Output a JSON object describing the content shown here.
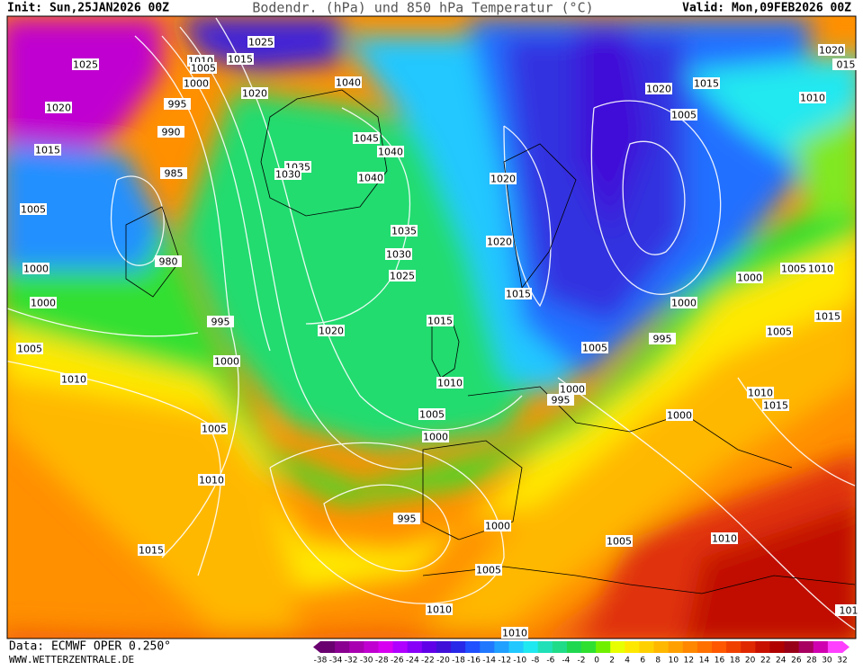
{
  "header": {
    "init": "Init: Sun,25JAN2026 00Z",
    "title": "Bodendr. (hPa) und 850 hPa Temperatur (°C)",
    "valid": "Valid: Mon,09FEB2026 00Z"
  },
  "isobar_labels": [
    "1025",
    "1010",
    "1005",
    "1015",
    "1025",
    "1000",
    "1020",
    "1040",
    "1020",
    "995",
    "990",
    "1045",
    "1040",
    "1035",
    "1030",
    "1040",
    "1015",
    "985",
    "1005",
    "1035",
    "1030",
    "980",
    "1000",
    "1025",
    "1000",
    "995",
    "1020",
    "1015",
    "1005",
    "1000",
    "1010",
    "1010",
    "1005",
    "1000",
    "1005",
    "1010",
    "995",
    "1015",
    "1000",
    "1005",
    "1010",
    "1010",
    "1020",
    "1020",
    "1015",
    "1020",
    "1015",
    "1005",
    "1010",
    "1020",
    "015",
    "1005",
    "995",
    "1000",
    "995",
    "1000",
    "1010",
    "1015",
    "1005",
    "1015",
    "1000",
    "1005",
    "1010",
    "1000",
    "1005",
    "1010",
    "101"
  ],
  "colorbar": {
    "labels": [
      "-38",
      "-34",
      "-32",
      "-30",
      "-28",
      "-26",
      "-24",
      "-22",
      "-20",
      "-18",
      "-16",
      "-14",
      "-12",
      "-10",
      "-8",
      "-6",
      "-4",
      "-2",
      "0",
      "2",
      "4",
      "6",
      "8",
      "10",
      "12",
      "14",
      "16",
      "18",
      "20",
      "22",
      "24",
      "26",
      "28",
      "30",
      "32"
    ],
    "colors": [
      "#6a0070",
      "#8a0090",
      "#a800b0",
      "#c000d0",
      "#d800f0",
      "#b000ff",
      "#8800f8",
      "#6000e8",
      "#4010d8",
      "#2828e8",
      "#2050ff",
      "#2078ff",
      "#20a0ff",
      "#20c8ff",
      "#20e8f0",
      "#20e0b8",
      "#20dc88",
      "#20d850",
      "#30e030",
      "#70f000",
      "#e8ff00",
      "#ffe800",
      "#ffd000",
      "#ffb800",
      "#ffa000",
      "#ff8800",
      "#ff7000",
      "#ff5800",
      "#f04000",
      "#e02800",
      "#c81000",
      "#b00000",
      "#980018",
      "#a80060",
      "#d000b0",
      "#ff40ff"
    ]
  },
  "footer": {
    "data": "Data: ECMWF OPER 0.250°",
    "site": "WWW.WETTERZENTRALE.DE"
  }
}
